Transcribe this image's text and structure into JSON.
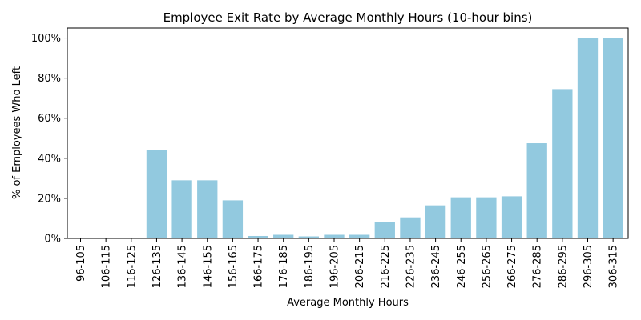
{
  "chart_data": {
    "type": "bar",
    "title": "Employee Exit Rate by Average Monthly Hours (10-hour bins)",
    "xlabel": "Average Monthly Hours",
    "ylabel": "% of Employees Who Left",
    "categories": [
      "96-105",
      "106-115",
      "116-125",
      "126-135",
      "136-145",
      "146-155",
      "156-165",
      "166-175",
      "176-185",
      "186-195",
      "196-205",
      "206-215",
      "216-225",
      "226-235",
      "236-245",
      "246-255",
      "256-265",
      "266-275",
      "276-285",
      "286-295",
      "296-305",
      "306-315"
    ],
    "values": [
      0,
      0,
      0,
      44,
      29,
      29,
      19,
      1.2,
      1.8,
      1.0,
      1.8,
      1.8,
      8,
      10.5,
      16.5,
      20.5,
      20.5,
      21,
      47.5,
      74.5,
      100,
      100
    ],
    "ylim": [
      0,
      105
    ],
    "yticks": [
      0,
      20,
      40,
      60,
      80,
      100
    ],
    "ytick_labels": [
      "0%",
      "20%",
      "40%",
      "60%",
      "80%",
      "100%"
    ],
    "bar_color": "#92c9df",
    "grid": false
  }
}
